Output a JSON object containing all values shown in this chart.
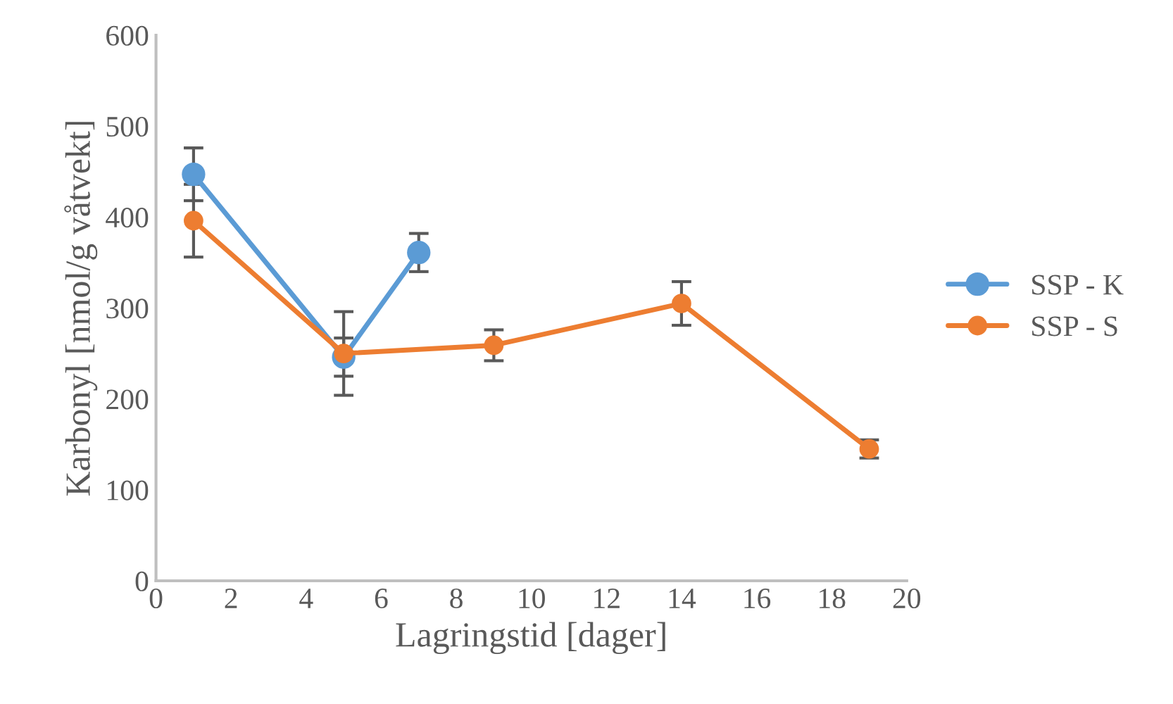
{
  "chart_data": {
    "type": "line",
    "xlabel": "Lagringstid [dager]",
    "ylabel": "Karbonyl [nmol/g våtvekt]",
    "xlim": [
      0,
      20
    ],
    "xticks": [
      0,
      2,
      4,
      6,
      8,
      10,
      12,
      14,
      16,
      18,
      20
    ],
    "ylim": [
      0,
      600
    ],
    "yticks": [
      0,
      100,
      200,
      300,
      400,
      500,
      600
    ],
    "grid": false,
    "legend": "right",
    "marker": "circle",
    "line_style": "solid",
    "series": [
      {
        "name": "SSP - K",
        "color": "#5b9bd5",
        "x": [
          1,
          5,
          7
        ],
        "values": [
          447,
          246,
          361
        ],
        "errors": [
          29,
          21,
          21
        ]
      },
      {
        "name": "SSP - S",
        "color": "#ed7d31",
        "x": [
          1,
          5,
          9,
          14,
          19
        ],
        "values": [
          396,
          250,
          259,
          305,
          145
        ],
        "errors": [
          40,
          46,
          17,
          24,
          10
        ]
      }
    ]
  }
}
